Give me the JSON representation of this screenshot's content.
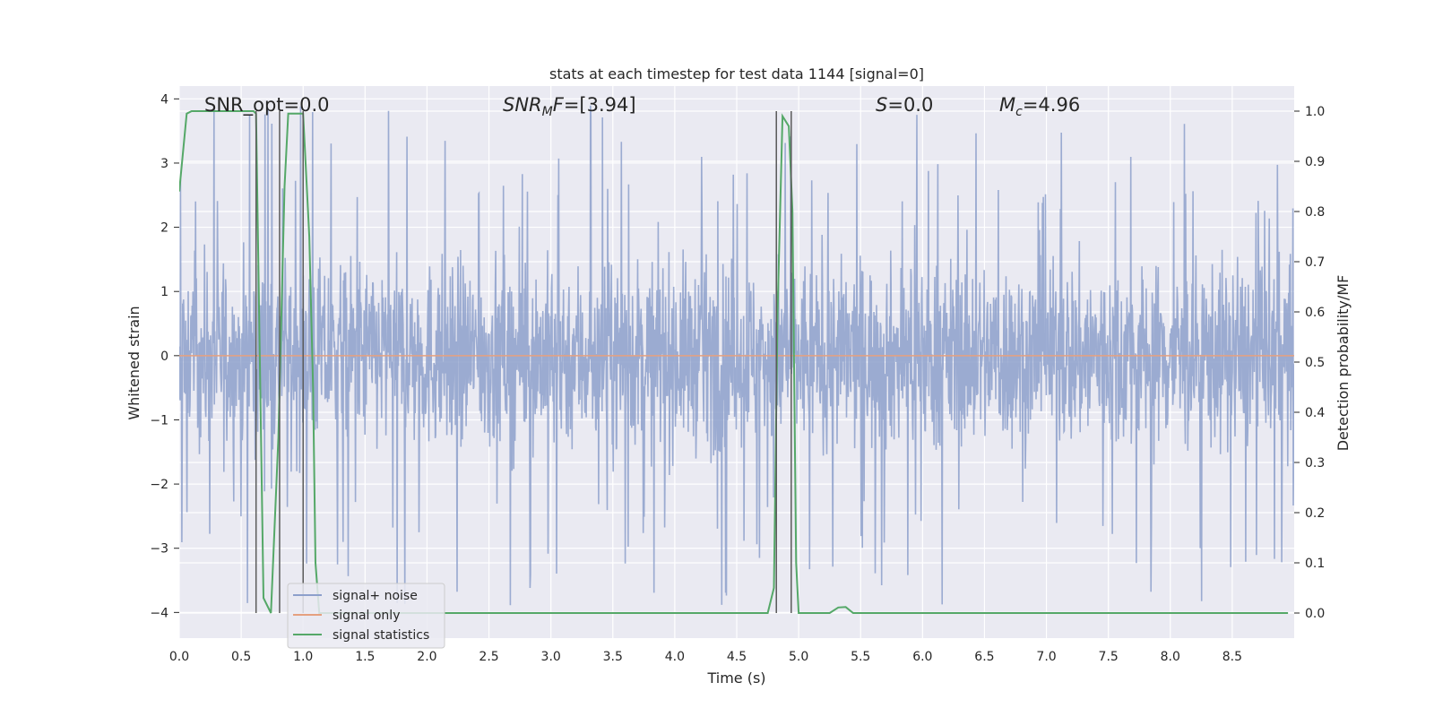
{
  "chart_data": {
    "type": "line",
    "title": "stats at each timestep for test data 1144 [signal=0]",
    "xlabel": "Time (s)",
    "ylabel": "Whitened strain",
    "y2label": "Detection probability/MF",
    "xlim": [
      0.0,
      9.0
    ],
    "ylim": [
      -4.4,
      4.2
    ],
    "y2lim": [
      -0.05,
      1.05
    ],
    "xticks": [
      0.0,
      0.5,
      1.0,
      1.5,
      2.0,
      2.5,
      3.0,
      3.5,
      4.0,
      4.5,
      5.0,
      5.5,
      6.0,
      6.5,
      7.0,
      7.5,
      8.0,
      8.5
    ],
    "xtick_labels": [
      "0.0",
      "0.5",
      "1.0",
      "1.5",
      "2.0",
      "2.5",
      "3.0",
      "3.5",
      "4.0",
      "4.5",
      "5.0",
      "5.5",
      "6.0",
      "6.5",
      "7.0",
      "7.5",
      "8.0",
      "8.5"
    ],
    "yticks": [
      4,
      3,
      2,
      1,
      0,
      -1,
      -2,
      -3,
      -4
    ],
    "ytick_labels": [
      "4",
      "3",
      "2",
      "1",
      "0",
      "−1",
      "−2",
      "−3",
      "−4"
    ],
    "y2ticks": [
      1.0,
      0.9,
      0.8,
      0.7,
      0.6,
      0.5,
      0.4,
      0.3,
      0.2,
      0.1,
      0.0
    ],
    "y2tick_labels": [
      "1.0",
      "0.9",
      "0.8",
      "0.7",
      "0.6",
      "0.5",
      "0.4",
      "0.3",
      "0.2",
      "0.1",
      "0.0"
    ],
    "grid": true,
    "legend_position": "lower-left",
    "annotations": {
      "snr_opt": "SNR_opt=0.0",
      "snr_mf": "=[3.94]",
      "s_val": "=0.0",
      "mc": "=4.96"
    },
    "series": [
      {
        "name": "signal+ noise",
        "color": "#8da0cb",
        "axis": "left",
        "description_values": "dense noise, approx ±1.6 band with spikes up to ±3.9",
        "amplitude_band": [
          -1.6,
          1.6
        ],
        "spike_range": [
          -3.9,
          3.9
        ]
      },
      {
        "name": "signal only",
        "color": "#e5a07f",
        "axis": "left",
        "x": [
          0.0,
          9.0
        ],
        "y": [
          0.0,
          0.0
        ]
      },
      {
        "name": "signal statistics",
        "color": "#55a868",
        "axis": "right",
        "x": [
          0.0,
          0.06,
          0.1,
          0.2,
          0.3,
          0.4,
          0.5,
          0.6,
          0.62,
          0.68,
          0.74,
          0.8,
          0.85,
          0.88,
          0.95,
          1.0,
          1.05,
          1.08,
          1.1,
          1.13,
          1.2,
          1.3,
          1.5,
          2.0,
          2.5,
          3.0,
          3.5,
          4.0,
          4.5,
          4.75,
          4.8,
          4.83,
          4.87,
          4.92,
          4.95,
          4.98,
          5.0,
          5.1,
          5.25,
          5.32,
          5.38,
          5.44,
          5.5,
          6.0,
          7.0,
          8.0,
          8.95
        ],
        "y": [
          0.84,
          0.995,
          1.0,
          1.0,
          1.0,
          1.0,
          1.0,
          1.0,
          0.995,
          0.03,
          0.0,
          0.35,
          0.85,
          0.995,
          0.995,
          0.995,
          0.75,
          0.45,
          0.1,
          0.0,
          0.0,
          0.0,
          0.0,
          0.0,
          0.0,
          0.0,
          0.0,
          0.0,
          0.0,
          0.0,
          0.05,
          0.6,
          0.99,
          0.97,
          0.8,
          0.1,
          0.0,
          0.0,
          0.0,
          0.011,
          0.012,
          0.0,
          0.0,
          0.0,
          0.0,
          0.0,
          0.0
        ]
      }
    ],
    "vertical_lines": {
      "color": "#5a5a5a",
      "x": [
        0.62,
        0.81,
        1.0,
        4.82,
        4.94
      ],
      "ytop": [
        1.0,
        1.0,
        1.0,
        1.0,
        1.0
      ]
    }
  }
}
